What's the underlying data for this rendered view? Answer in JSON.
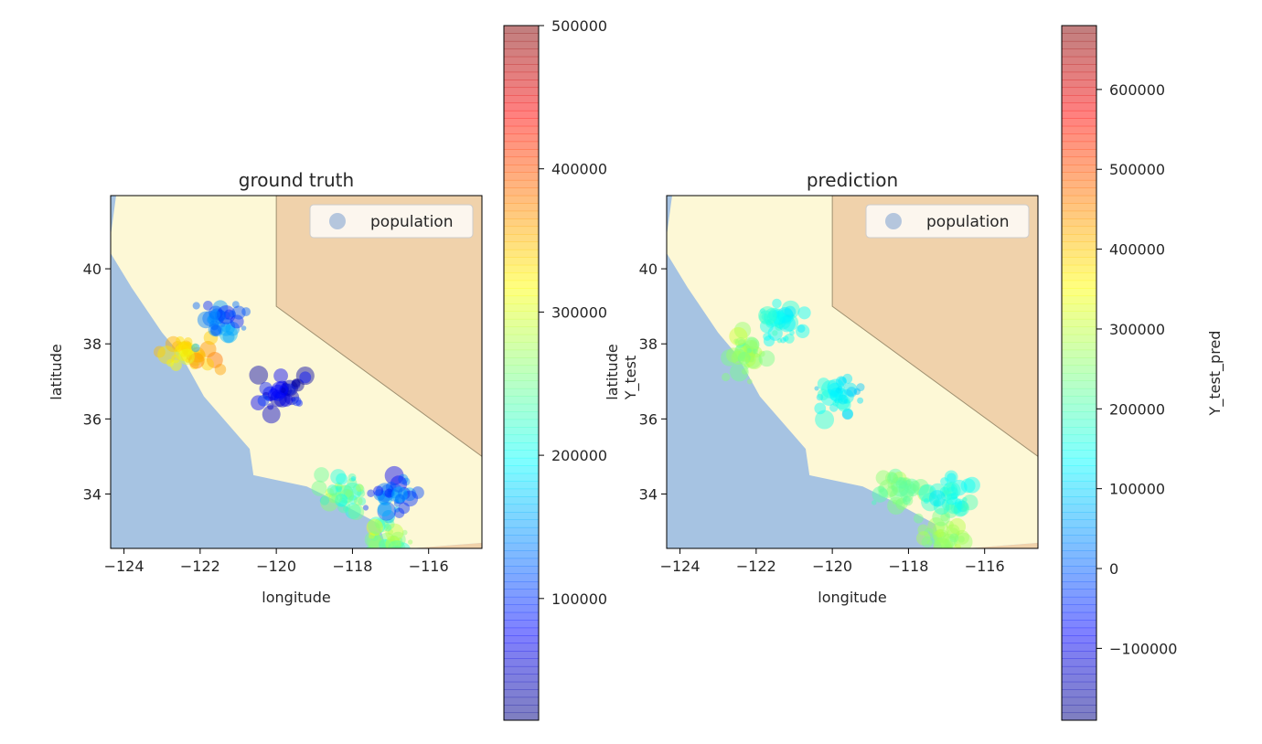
{
  "chart_data": [
    {
      "type": "scatter",
      "title": "ground truth",
      "xlabel": "longitude",
      "ylabel": "latitude",
      "xlim": [
        -124.35,
        -114.6
      ],
      "ylim": [
        32.55,
        41.95
      ],
      "xticks": [
        -124,
        -122,
        -120,
        -118,
        -116
      ],
      "xtick_labels": [
        "−124",
        "−122",
        "−120",
        "−118",
        "−116"
      ],
      "yticks": [
        34,
        36,
        38,
        40
      ],
      "ytick_labels": [
        "34",
        "36",
        "38",
        "40"
      ],
      "legend": {
        "entries": [
          "population"
        ],
        "placement": "upper right"
      },
      "grid": false,
      "colorbar": {
        "label": "",
        "range": [
          15000,
          500000
        ],
        "ticks": [
          100000,
          200000,
          300000,
          400000,
          500000
        ],
        "tick_labels": [
          "100000",
          "200000",
          "300000",
          "400000",
          "500000"
        ],
        "colormap": "jet"
      },
      "clusters": [
        {
          "region": "bay-area",
          "lon": -122.2,
          "lat": 37.7,
          "value": 330000
        },
        {
          "region": "sacramento",
          "lon": -121.4,
          "lat": 38.6,
          "value": 120000
        },
        {
          "region": "central-valley",
          "lon": -119.8,
          "lat": 36.7,
          "value": 70000
        },
        {
          "region": "los-angeles",
          "lon": -118.2,
          "lat": 34.0,
          "value": 240000
        },
        {
          "region": "san-diego",
          "lon": -117.1,
          "lat": 32.8,
          "value": 260000
        },
        {
          "region": "inland-empire",
          "lon": -116.9,
          "lat": 33.9,
          "value": 120000
        }
      ]
    },
    {
      "type": "scatter",
      "title": "prediction",
      "xlabel": "longitude",
      "ylabel": "latitude",
      "ylabel2": "Y_test",
      "xlim": [
        -124.35,
        -114.6
      ],
      "ylim": [
        32.55,
        41.95
      ],
      "xticks": [
        -124,
        -122,
        -120,
        -118,
        -116
      ],
      "xtick_labels": [
        "−124",
        "−122",
        "−120",
        "−118",
        "−116"
      ],
      "yticks": [
        34,
        36,
        38,
        40
      ],
      "ytick_labels": [
        "34",
        "36",
        "38",
        "40"
      ],
      "legend": {
        "entries": [
          "population"
        ],
        "placement": "upper right"
      },
      "grid": false,
      "colorbar": {
        "label": "Y_test_pred",
        "range": [
          -190000,
          680000
        ],
        "ticks": [
          -100000,
          0,
          100000,
          200000,
          300000,
          400000,
          500000,
          600000
        ],
        "tick_labels": [
          "−100000",
          "0",
          "100000",
          "200000",
          "300000",
          "400000",
          "500000",
          "600000"
        ],
        "colormap": "jet"
      },
      "clusters": [
        {
          "region": "bay-area",
          "lon": -122.2,
          "lat": 37.7,
          "value": 250000
        },
        {
          "region": "sacramento",
          "lon": -121.4,
          "lat": 38.6,
          "value": 150000
        },
        {
          "region": "central-valley",
          "lon": -119.8,
          "lat": 36.7,
          "value": 130000
        },
        {
          "region": "los-angeles",
          "lon": -118.2,
          "lat": 34.0,
          "value": 230000
        },
        {
          "region": "san-diego",
          "lon": -117.1,
          "lat": 32.8,
          "value": 260000
        },
        {
          "region": "inland-empire",
          "lon": -116.9,
          "lat": 33.9,
          "value": 160000
        }
      ]
    }
  ]
}
